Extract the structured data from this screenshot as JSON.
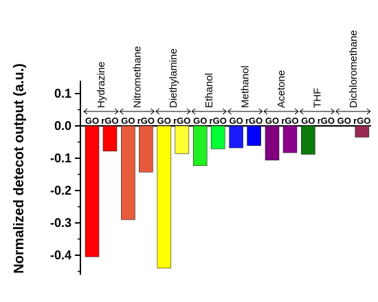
{
  "chart_data": {
    "type": "bar",
    "ylabel": "Normalized detecot output (a.u.)",
    "ylim": [
      -0.45,
      0.15
    ],
    "yticks": [
      0.1,
      0.0,
      -0.1,
      -0.2,
      -0.3,
      -0.4
    ],
    "ytick_labels": [
      "0.1",
      "0.0",
      "-0.1",
      "-0.2",
      "-0.3",
      "-0.4"
    ],
    "bar_labels": [
      "GO",
      "rGO"
    ],
    "groups": [
      {
        "label": "Hydrazine",
        "values": [
          -0.405,
          -0.078
        ],
        "colors": [
          "#ff0000",
          "#ff0000"
        ]
      },
      {
        "label": "Nitromethane",
        "values": [
          -0.29,
          -0.143
        ],
        "colors": [
          "#e85a3c",
          "#e85a3c"
        ]
      },
      {
        "label": "Diethylamine",
        "values": [
          -0.44,
          -0.086
        ],
        "colors": [
          "#ffff00",
          "#ffff33"
        ]
      },
      {
        "label": "Ethanol",
        "values": [
          -0.123,
          -0.071
        ],
        "colors": [
          "#22ee22",
          "#00ff33"
        ]
      },
      {
        "label": "Methanol",
        "values": [
          -0.068,
          -0.061
        ],
        "colors": [
          "#1a1aff",
          "#0000ff"
        ]
      },
      {
        "label": "Acetone",
        "values": [
          -0.106,
          -0.083
        ],
        "colors": [
          "#800080",
          "#8b008b"
        ]
      },
      {
        "label": "THF",
        "values": [
          -0.088,
          0.0
        ],
        "colors": [
          "#0a7a0a",
          "#0a7a0a"
        ]
      },
      {
        "label": "Dichloromethane",
        "values": [
          0.0,
          -0.035
        ],
        "colors": [
          "#9a2a55",
          "#9a2a55"
        ]
      }
    ]
  }
}
